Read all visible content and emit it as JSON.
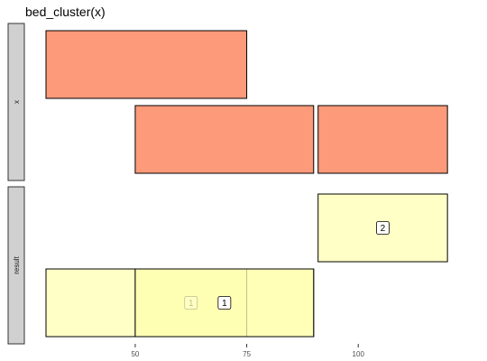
{
  "chart_data": {
    "type": "interval",
    "title": "bed_cluster(x)",
    "xlabel": "",
    "ylabel": "",
    "xlim": [
      30,
      123
    ],
    "x_ticks": [
      50,
      75,
      100
    ],
    "grid": false,
    "facets": [
      {
        "name": "x",
        "intervals": [
          {
            "start": 30,
            "end": 75,
            "row": 1
          },
          {
            "start": 50,
            "end": 90,
            "row": 0
          },
          {
            "start": 91,
            "end": 120,
            "row": 0
          }
        ]
      },
      {
        "name": "result",
        "intervals": [
          {
            "start": 91,
            "end": 120,
            "row": 1,
            "label": "2"
          },
          {
            "start": 30,
            "end": 90,
            "row": 0
          },
          {
            "start": 50,
            "end": 75,
            "row": 0,
            "label": "1"
          },
          {
            "start": 50,
            "end": 90,
            "row": 0,
            "label": "1"
          }
        ]
      }
    ],
    "colors": {
      "x_fill": "#fc9a7a",
      "result_fill": "#ffffb3",
      "strip_fill": "#d0d0d0"
    }
  }
}
